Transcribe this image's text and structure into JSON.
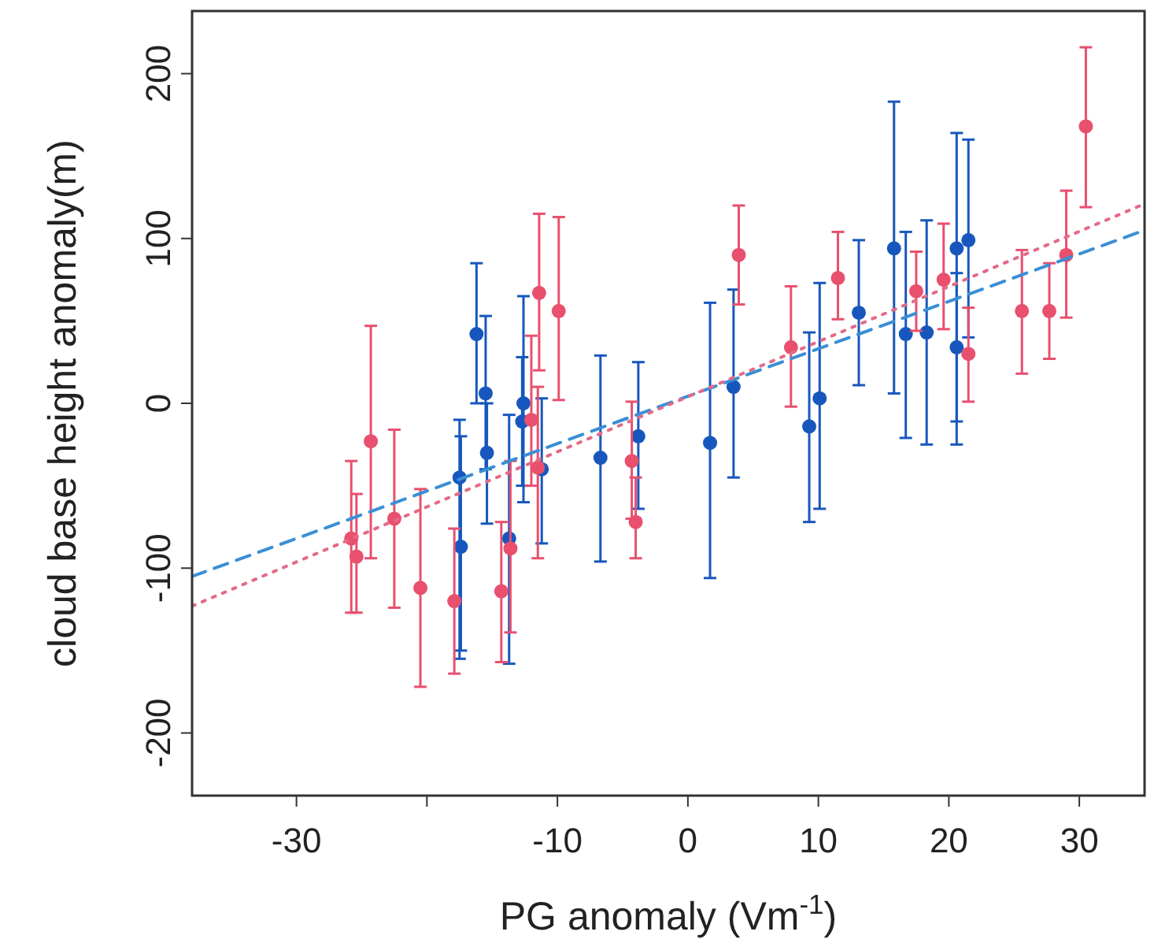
{
  "chart_data": {
    "type": "scatter",
    "xlabel": "PG anomaly (Vm$^{-1}$)",
    "ylabel": "cloud base height anomaly(m)",
    "xlim": [
      -38,
      35
    ],
    "ylim": [
      -238,
      238
    ],
    "xticks": [
      -30,
      {
        "value": -20,
        "label": null
      },
      -10,
      0,
      10,
      20,
      30
    ],
    "yticks": [
      -200,
      -100,
      0,
      100,
      200
    ],
    "grid": false,
    "series": [
      {
        "color": "#1757bd",
        "marker": "circle",
        "x": [
          -17.5,
          -17.4,
          -16.2,
          -15.5,
          -15.4,
          -13.7,
          -12.7,
          -12.6,
          -11.2,
          -6.7,
          -3.8,
          1.7,
          3.5,
          9.3,
          10.1,
          13.1,
          15.8,
          16.7,
          18.3,
          20.6,
          20.6,
          21.5
        ],
        "values": [
          -45,
          -87,
          42,
          6,
          -30,
          -82,
          -11,
          0,
          -40,
          -33,
          -20,
          -24,
          10,
          -14,
          3,
          55,
          94,
          42,
          43,
          94,
          34,
          99
        ],
        "errors": [
          [
            -155,
            -10
          ],
          [
            -150,
            -20
          ],
          [
            0,
            85
          ],
          [
            -40,
            53
          ],
          [
            -73,
            0
          ],
          [
            -158,
            -7
          ],
          [
            -50,
            28
          ],
          [
            -60,
            65
          ],
          [
            -85,
            3
          ],
          [
            -96,
            29
          ],
          [
            -64,
            25
          ],
          [
            -106,
            61
          ],
          [
            -45,
            69
          ],
          [
            -72,
            43
          ],
          [
            -64,
            73
          ],
          [
            11,
            99
          ],
          [
            6,
            183
          ],
          [
            -21,
            104
          ],
          [
            -25,
            111
          ],
          [
            -25,
            164
          ],
          [
            -11,
            79
          ],
          [
            40,
            160
          ]
        ]
      },
      {
        "color": "#e8506e",
        "marker": "circle",
        "x": [
          -25.8,
          -25.4,
          -24.3,
          -22.5,
          -20.5,
          -17.9,
          -14.3,
          -13.6,
          -12,
          -11.5,
          -11.4,
          -9.9,
          -4.3,
          -4,
          3.9,
          7.9,
          11.5,
          17.5,
          19.6,
          21.5,
          25.6,
          27.7,
          29,
          30.5
        ],
        "values": [
          -82,
          -93,
          -23,
          -70,
          -112,
          -120,
          -114,
          -88,
          -10,
          -39,
          67,
          56,
          -35,
          -72,
          90,
          34,
          76,
          68,
          75,
          30,
          56,
          56,
          90,
          168
        ],
        "errors": [
          [
            -127,
            -35
          ],
          [
            -127,
            -55
          ],
          [
            -94,
            47
          ],
          [
            -124,
            -16
          ],
          [
            -172,
            -52
          ],
          [
            -164,
            -76
          ],
          [
            -157,
            -72
          ],
          [
            -139,
            -35
          ],
          [
            -50,
            41
          ],
          [
            -94,
            10
          ],
          [
            20,
            115
          ],
          [
            2,
            113
          ],
          [
            -70,
            1
          ],
          [
            -94,
            -45
          ],
          [
            60,
            120
          ],
          [
            -2,
            71
          ],
          [
            51,
            104
          ],
          [
            44,
            92
          ],
          [
            45,
            109
          ],
          [
            1,
            58
          ],
          [
            18,
            93
          ],
          [
            27,
            85
          ],
          [
            52,
            129
          ],
          [
            119,
            216
          ]
        ]
      },
      {
        "type": "line",
        "color": "#3a8fd6",
        "line_style": "dashed",
        "marker": "none",
        "x": [
          -38,
          35
        ],
        "values": [
          -105,
          105
        ]
      },
      {
        "type": "line",
        "color": "#e46a86",
        "line_style": "dotted",
        "marker": "none",
        "x": [
          -38,
          35
        ],
        "values": [
          -123,
          121
        ]
      }
    ]
  }
}
